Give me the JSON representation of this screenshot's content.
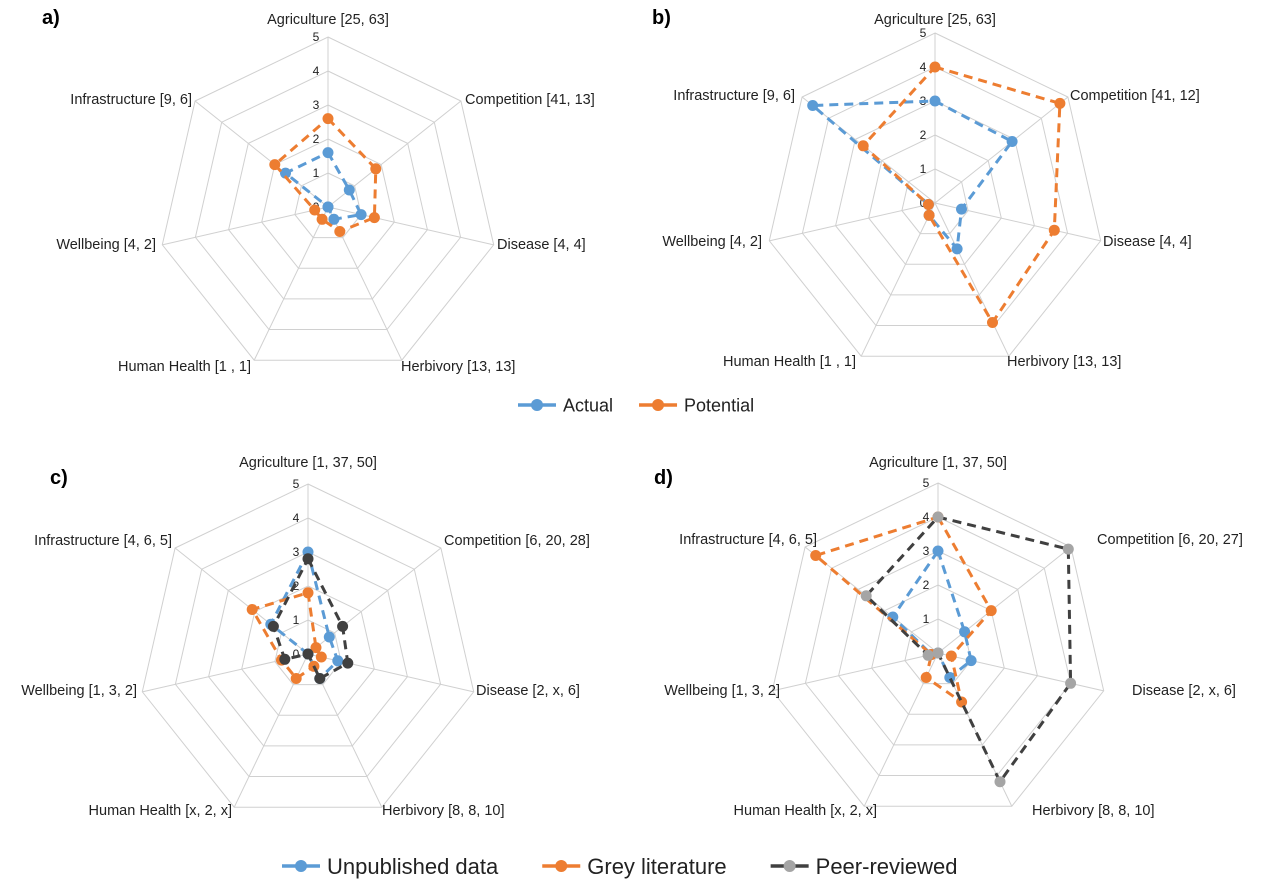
{
  "chart_data": [
    {
      "type": "radar",
      "panel": "a)",
      "axes": [
        "Agriculture [25, 63]",
        "Competition [41, 13]",
        "Disease [4, 4]",
        "Herbivory [13, 13]",
        "Human Health [1 , 1]",
        "Wellbeing [4, 2]",
        "Infrastructure [9, 6]"
      ],
      "ticks": [
        "0",
        "1",
        "2",
        "3",
        "4",
        "5"
      ],
      "range": [
        0,
        5
      ],
      "series": [
        {
          "name": "Actual",
          "color": "#5b9bd5",
          "values": [
            1.6,
            0.8,
            1.0,
            0.4,
            0.0,
            0.0,
            1.6
          ]
        },
        {
          "name": "Potential",
          "color": "#ed7d31",
          "values": [
            2.6,
            1.8,
            1.4,
            0.8,
            0.4,
            0.4,
            2.0
          ]
        }
      ]
    },
    {
      "type": "radar",
      "panel": "b)",
      "axes": [
        "Agriculture [25, 63]",
        "Competition [41, 12]",
        "Disease [4, 4]",
        "Herbivory [13, 13]",
        "Human Health [1 , 1]",
        "Wellbeing [4, 2]",
        "Infrastructure [9, 6]"
      ],
      "ticks": [
        "0",
        "1",
        "2",
        "3",
        "4",
        "5"
      ],
      "range": [
        0,
        5
      ],
      "series": [
        {
          "name": "Actual",
          "color": "#5b9bd5",
          "values": [
            3.0,
            2.9,
            0.8,
            1.5,
            0.4,
            0.2,
            4.6
          ]
        },
        {
          "name": "Potential",
          "color": "#ed7d31",
          "values": [
            4.0,
            4.7,
            3.6,
            3.9,
            0.4,
            0.2,
            2.7
          ]
        }
      ]
    },
    {
      "type": "radar",
      "panel": "c)",
      "axes": [
        "Agriculture [1, 37, 50]",
        "Competition [6, 20, 28]",
        "Disease [2, x, 6]",
        "Herbivory [8, 8, 10]",
        "Human Health [x, 2, x]",
        "Wellbeing [1, 3, 2]",
        "Infrastructure [4, 6, 5]"
      ],
      "ticks": [
        "0",
        "1",
        "2",
        "3",
        "4",
        "5"
      ],
      "range": [
        0,
        5
      ],
      "series": [
        {
          "name": "Unpublished data",
          "color": "#5b9bd5",
          "values": [
            3.0,
            0.8,
            0.9,
            0.8,
            0.0,
            0.0,
            1.4
          ]
        },
        {
          "name": "Grey literature",
          "color": "#ed7d31",
          "values": [
            1.8,
            0.3,
            0.4,
            0.4,
            0.8,
            0.8,
            2.1
          ]
        },
        {
          "name": "Peer-reviewed",
          "color": "#404040",
          "values": [
            2.8,
            1.3,
            1.2,
            0.8,
            0.0,
            0.7,
            1.3
          ]
        }
      ]
    },
    {
      "type": "radar",
      "panel": "d)",
      "axes": [
        "Agriculture [1, 37, 50]",
        "Competition [6, 20, 27]",
        "Disease [2, x, 6]",
        "Herbivory [8, 8, 10]",
        "Human Health [x, 2, x]",
        "Wellbeing [1, 3, 2]",
        "Infrastructure [4, 6, 5]"
      ],
      "ticks": [
        "0",
        "1",
        "2",
        "3",
        "4",
        "5"
      ],
      "range": [
        0,
        5
      ],
      "series": [
        {
          "name": "Unpublished data",
          "color": "#5b9bd5",
          "values": [
            3.0,
            1.0,
            1.0,
            0.8,
            0.0,
            0.2,
            1.7
          ]
        },
        {
          "name": "Grey literature",
          "color": "#ed7d31",
          "values": [
            4.0,
            2.0,
            0.4,
            1.6,
            0.8,
            0.2,
            4.6
          ]
        },
        {
          "name": "Peer-reviewed",
          "color": "#404040",
          "marker_color": "#a5a5a5",
          "values": [
            4.0,
            4.9,
            4.0,
            4.2,
            0.0,
            0.3,
            2.7
          ]
        }
      ]
    }
  ],
  "legends": {
    "top": [
      {
        "label": "Actual",
        "color": "#5b9bd5"
      },
      {
        "label": "Potential",
        "color": "#ed7d31"
      }
    ],
    "bottom": [
      {
        "label": "Unpublished data",
        "color": "#5b9bd5",
        "marker_color": "#5b9bd5"
      },
      {
        "label": "Grey literature",
        "color": "#ed7d31",
        "marker_color": "#ed7d31"
      },
      {
        "label": "Peer-reviewed",
        "color": "#404040",
        "marker_color": "#a5a5a5"
      }
    ]
  }
}
